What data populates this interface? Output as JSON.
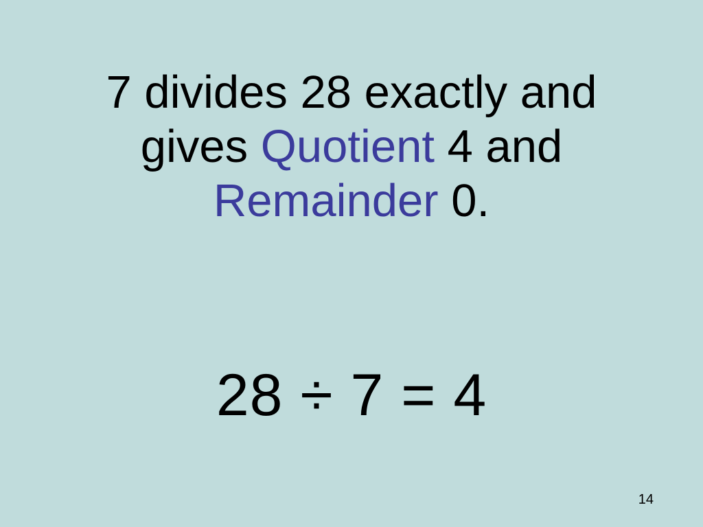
{
  "slide": {
    "background_color": "#c0dcdc",
    "text_color": "#000000",
    "highlight_color": "#3b3b9c",
    "main_text_fontsize": 67,
    "equation_fontsize": 86,
    "page_number_fontsize": 20,
    "line1_part1": "7 divides  28 exactly and",
    "line2_part1": "gives ",
    "line2_highlight": "Quotient",
    "line2_part2": " 4 and",
    "line3_highlight": "Remainder",
    "line3_part2": " 0.",
    "equation": "28 ÷ 7  = 4",
    "page_number": "14"
  }
}
